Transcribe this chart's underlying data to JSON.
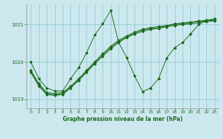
{
  "title": "Graphe pression niveau de la mer (hPa)",
  "background_color": "#cce8ee",
  "plot_background": "#cce8ee",
  "grid_color": "#88c4cc",
  "line_color": "#1a6b1a",
  "xlim": [
    -0.5,
    23.5
  ],
  "ylim": [
    1018.75,
    1021.55
  ],
  "yticks": [
    1019,
    1020,
    1021
  ],
  "xticks": [
    0,
    1,
    2,
    3,
    4,
    5,
    6,
    7,
    8,
    9,
    10,
    11,
    12,
    13,
    14,
    15,
    16,
    17,
    18,
    19,
    20,
    21,
    22,
    23
  ],
  "y_spiky": [
    1020.0,
    1019.55,
    1019.3,
    1019.22,
    1019.22,
    1019.55,
    1019.85,
    1020.25,
    1020.72,
    1021.02,
    1021.38,
    1020.52,
    1020.12,
    1019.62,
    1019.2,
    1019.3,
    1019.55,
    1020.1,
    1020.38,
    1020.52,
    1020.75,
    1021.0,
    1021.12,
    1021.15
  ],
  "y_lin1": [
    1019.78,
    1019.42,
    1019.18,
    1019.15,
    1019.18,
    1019.35,
    1019.55,
    1019.78,
    1020.0,
    1020.22,
    1020.42,
    1020.58,
    1020.7,
    1020.8,
    1020.88,
    1020.92,
    1020.95,
    1020.98,
    1021.02,
    1021.05,
    1021.07,
    1021.1,
    1021.12,
    1021.15
  ],
  "y_lin2": [
    1019.75,
    1019.38,
    1019.15,
    1019.12,
    1019.15,
    1019.32,
    1019.52,
    1019.75,
    1019.97,
    1020.18,
    1020.38,
    1020.55,
    1020.67,
    1020.77,
    1020.85,
    1020.9,
    1020.92,
    1020.96,
    1021.0,
    1021.02,
    1021.05,
    1021.08,
    1021.1,
    1021.12
  ],
  "y_lin3": [
    1019.72,
    1019.35,
    1019.12,
    1019.1,
    1019.12,
    1019.3,
    1019.5,
    1019.72,
    1019.95,
    1020.15,
    1020.35,
    1020.52,
    1020.65,
    1020.75,
    1020.82,
    1020.87,
    1020.9,
    1020.94,
    1020.98,
    1021.0,
    1021.02,
    1021.05,
    1021.08,
    1021.1
  ]
}
